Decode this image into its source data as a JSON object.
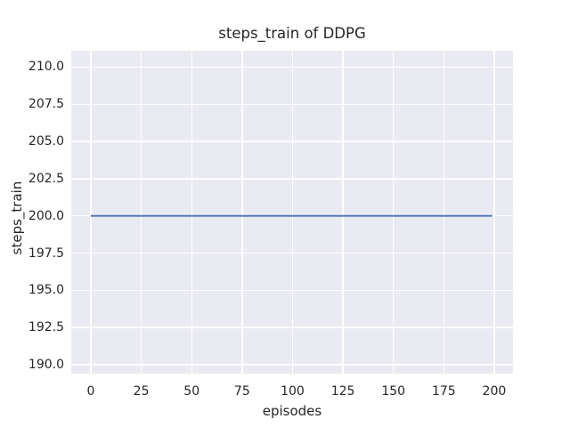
{
  "chart_data": {
    "type": "line",
    "title": "steps_train of DDPG",
    "xlabel": "episodes",
    "ylabel": "steps_train",
    "xlim": [
      -9.7,
      209.3
    ],
    "ylim": [
      189.4,
      211.1
    ],
    "grid": true,
    "legend": "none",
    "x_ticks": {
      "values": [
        0,
        25,
        50,
        75,
        100,
        125,
        150,
        175,
        200
      ],
      "labels": [
        "0",
        "25",
        "50",
        "75",
        "100",
        "125",
        "150",
        "175",
        "200"
      ]
    },
    "y_ticks": {
      "values": [
        190.0,
        192.5,
        195.0,
        197.5,
        200.0,
        202.5,
        205.0,
        207.5,
        210.0
      ],
      "labels": [
        "190.0",
        "192.5",
        "195.0",
        "197.5",
        "200.0",
        "202.5",
        "205.0",
        "207.5",
        "210.0"
      ]
    },
    "series": [
      {
        "name": "steps_train",
        "color": "#4C72B0",
        "x": [
          0,
          199
        ],
        "y": [
          200,
          200
        ]
      }
    ]
  },
  "colors": {
    "figure_bg": "#FFFFFF",
    "axes_bg": "#EAEAF2",
    "grid": "#FFFFFF",
    "text": "#262626",
    "series_line": "#4C72B0"
  }
}
